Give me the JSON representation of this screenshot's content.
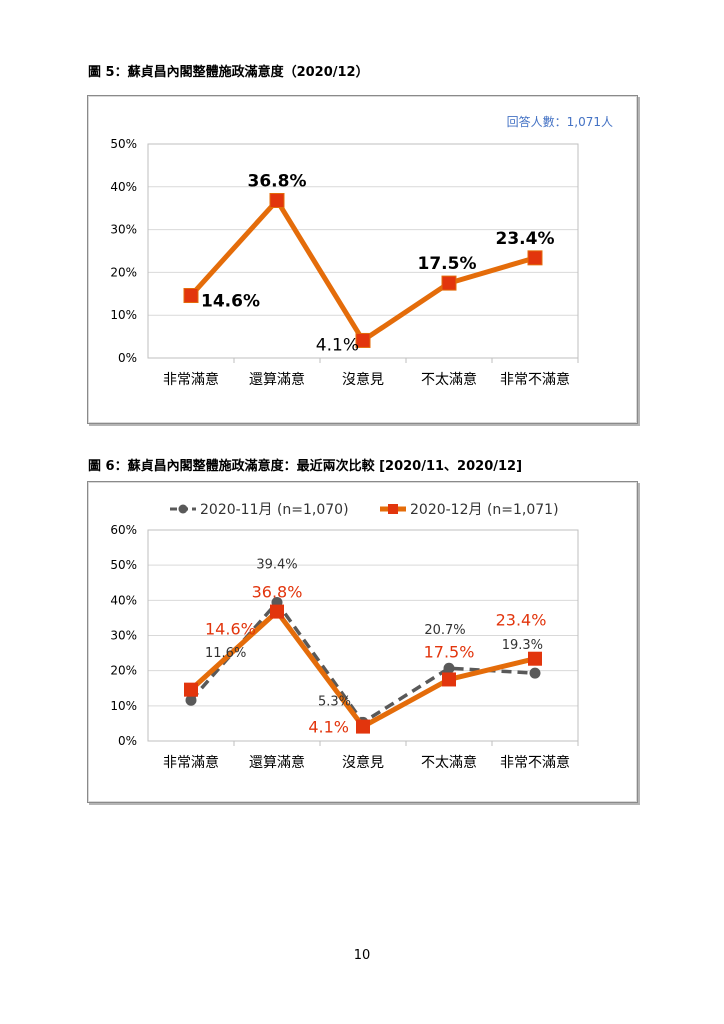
{
  "page_number": "10",
  "figures": [
    {
      "title": "圖 5：蘇貞昌內閣整體施政滿意度（2020/12）"
    },
    {
      "title": "圖 6：蘇貞昌內閣整體施政滿意度：最近兩次比較 [2020/11、2020/12]"
    }
  ],
  "colors": {
    "orange": "#E46C0A",
    "marker": "#E2350D",
    "gray": "#595959",
    "note_blue": "#4472C4"
  },
  "chart_data": [
    {
      "type": "line",
      "note": "回答人數：1,071人",
      "categories": [
        "非常滿意",
        "還算滿意",
        "沒意見",
        "不太滿意",
        "非常不滿意"
      ],
      "y_ticks": [
        "50%",
        "40%",
        "30%",
        "20%",
        "10%",
        "0%"
      ],
      "ylim": [
        0,
        50
      ],
      "grid": true,
      "series": [
        {
          "values": [
            14.6,
            36.8,
            4.1,
            17.5,
            23.4
          ],
          "labels": [
            "14.6%",
            "36.8%",
            "4.1%",
            "17.5%",
            "23.4%"
          ]
        }
      ]
    },
    {
      "type": "line",
      "categories": [
        "非常滿意",
        "還算滿意",
        "沒意見",
        "不太滿意",
        "非常不滿意"
      ],
      "y_ticks": [
        "60%",
        "50%",
        "40%",
        "30%",
        "20%",
        "10%",
        "0%"
      ],
      "ylim": [
        0,
        60
      ],
      "grid": true,
      "legend_position": "top",
      "series": [
        {
          "name": "2020-11月 (n=1,070)",
          "values": [
            11.6,
            39.4,
            5.3,
            20.7,
            19.3
          ],
          "labels": [
            "11.6%",
            "39.4%",
            "5.3%",
            "20.7%",
            "19.3%"
          ]
        },
        {
          "name": "2020-12月 (n=1,071)",
          "values": [
            14.6,
            36.8,
            4.1,
            17.5,
            23.4
          ],
          "labels": [
            "14.6%",
            "36.8%",
            "4.1%",
            "17.5%",
            "23.4%"
          ]
        }
      ]
    }
  ]
}
